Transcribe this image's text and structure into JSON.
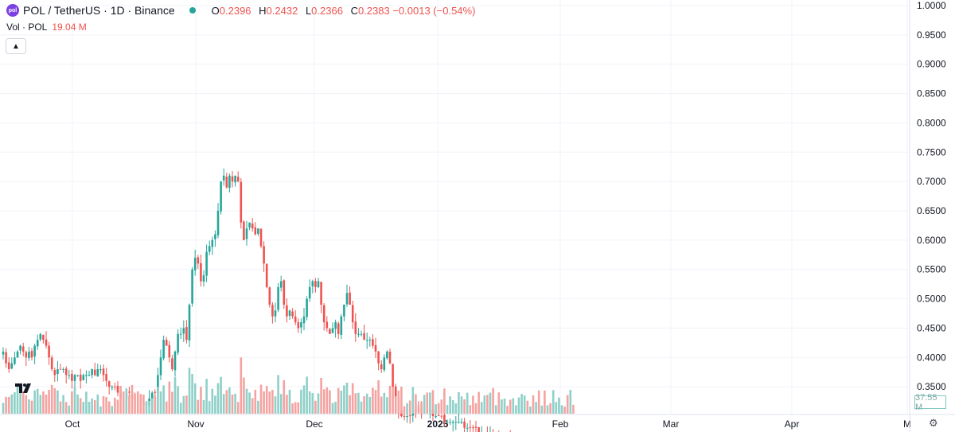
{
  "header": {
    "logo_text": "pol",
    "symbol": "POL / TetherUS · 1D · Binance",
    "ohlc": [
      {
        "k": "O",
        "v": "0.2396"
      },
      {
        "k": "H",
        "v": "0.2432"
      },
      {
        "k": "L",
        "v": "0.2366"
      },
      {
        "k": "C",
        "v": "0.2383"
      },
      {
        "k": "",
        "v": "−0.0013 (−0.54%)"
      }
    ]
  },
  "volume_legend": {
    "label": "Vol · POL",
    "value": "19.04 M"
  },
  "volume_tag": "37.55 M",
  "collapse_icon": "chevron-up-icon",
  "colors": {
    "up": "#26a69a",
    "down": "#ef5350",
    "up_vol": "#8fd0c8",
    "down_vol": "#f4a3a1",
    "grid": "#f0f3fa",
    "text": "#131722"
  },
  "chart_data": {
    "type": "candlestick",
    "y_ticks": [
      "1.0000",
      "0.9500",
      "0.9000",
      "0.8500",
      "0.8000",
      "0.7500",
      "0.7000",
      "0.6500",
      "0.6000",
      "0.5500",
      "0.5000",
      "0.4500",
      "0.4000",
      "0.3500"
    ],
    "x_ticks": [
      "Oct",
      "Nov",
      "Dec",
      "2025",
      "Feb",
      "Mar",
      "Apr",
      "M"
    ],
    "ylim": [
      0.3,
      1.0
    ],
    "closes": [
      0.41,
      0.39,
      0.38,
      0.39,
      0.4,
      0.41,
      0.42,
      0.41,
      0.4,
      0.41,
      0.4,
      0.42,
      0.43,
      0.44,
      0.43,
      0.42,
      0.4,
      0.38,
      0.37,
      0.38,
      0.38,
      0.38,
      0.37,
      0.37,
      0.36,
      0.37,
      0.37,
      0.36,
      0.37,
      0.37,
      0.37,
      0.38,
      0.37,
      0.38,
      0.38,
      0.37,
      0.36,
      0.35,
      0.35,
      0.35,
      0.34,
      0.33,
      0.33,
      0.34,
      0.34,
      0.33,
      0.33,
      0.33,
      0.32,
      0.32,
      0.32,
      0.33,
      0.34,
      0.34,
      0.37,
      0.4,
      0.43,
      0.42,
      0.4,
      0.38,
      0.41,
      0.44,
      0.44,
      0.45,
      0.43,
      0.49,
      0.55,
      0.57,
      0.56,
      0.53,
      0.54,
      0.58,
      0.59,
      0.6,
      0.61,
      0.65,
      0.7,
      0.71,
      0.69,
      0.71,
      0.7,
      0.71,
      0.7,
      0.63,
      0.6,
      0.62,
      0.63,
      0.62,
      0.61,
      0.62,
      0.59,
      0.56,
      0.52,
      0.49,
      0.47,
      0.48,
      0.52,
      0.53,
      0.49,
      0.47,
      0.48,
      0.47,
      0.46,
      0.45,
      0.46,
      0.47,
      0.5,
      0.52,
      0.53,
      0.52,
      0.53,
      0.49,
      0.46,
      0.45,
      0.44,
      0.45,
      0.46,
      0.44,
      0.47,
      0.49,
      0.51,
      0.49,
      0.46,
      0.44,
      0.44,
      0.44,
      0.43,
      0.43,
      0.43,
      0.42,
      0.41,
      0.39,
      0.38,
      0.4,
      0.41,
      0.39,
      0.35,
      0.33,
      0.31,
      0.3,
      0.3,
      0.3,
      0.3,
      0.31,
      0.31,
      0.31,
      0.31,
      0.31,
      0.31,
      0.31,
      0.3,
      0.3,
      0.3,
      0.3,
      0.29,
      0.29,
      0.29,
      0.29,
      0.29,
      0.29,
      0.29,
      0.28,
      0.28,
      0.28,
      0.28,
      0.28,
      0.27,
      0.27,
      0.27,
      0.27,
      0.27,
      0.26,
      0.26,
      0.26,
      0.26,
      0.26,
      0.26,
      0.25,
      0.25,
      0.25,
      0.25,
      0.25,
      0.25,
      0.25,
      0.25,
      0.24,
      0.24,
      0.24,
      0.24,
      0.24,
      0.24,
      0.24,
      0.24,
      0.24,
      0.24,
      0.24,
      0.24,
      0.24,
      0.24,
      0.24
    ]
  }
}
